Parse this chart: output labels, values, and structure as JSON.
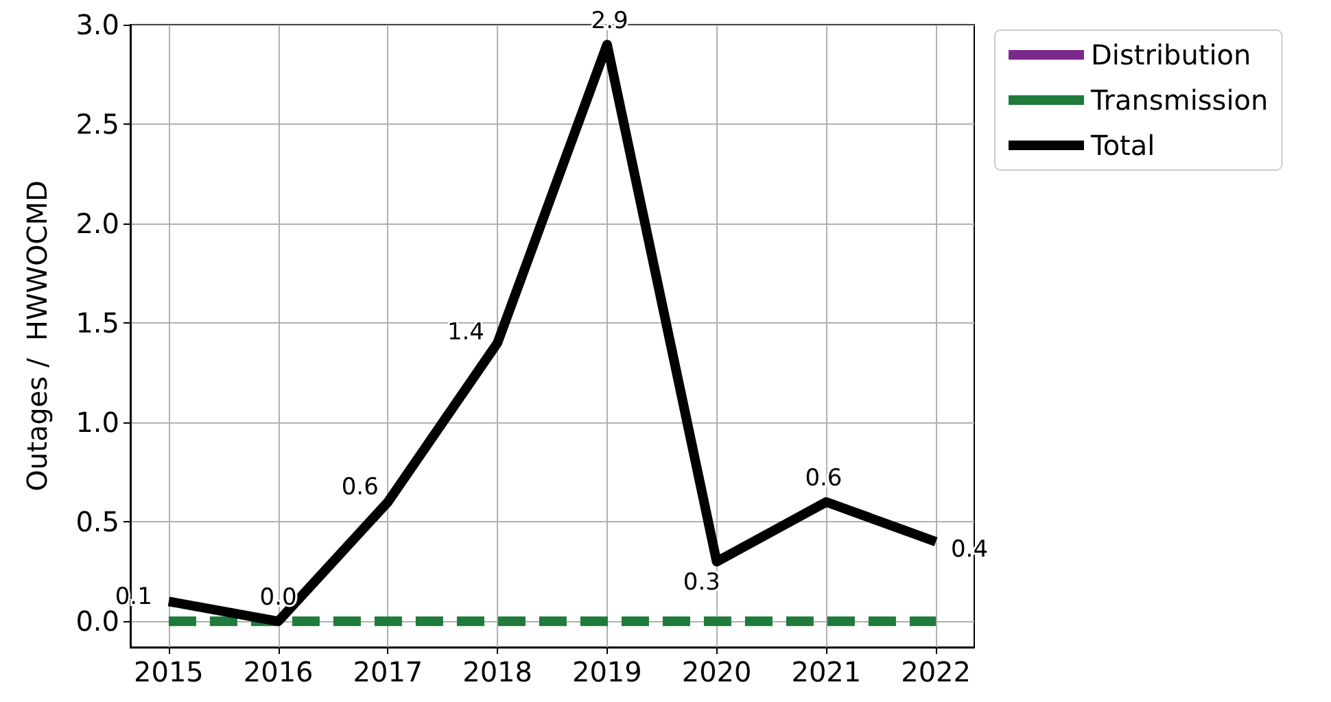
{
  "chart_data": {
    "type": "line",
    "ylabel": "Outages /  HWWOCMD",
    "x": [
      2015,
      2016,
      2017,
      2018,
      2019,
      2020,
      2021,
      2022
    ],
    "series": [
      {
        "name": "Distribution",
        "color": "#7b2a8c",
        "line_style": "solid",
        "values": [
          null,
          null,
          null,
          null,
          null,
          null,
          null,
          null
        ]
      },
      {
        "name": "Transmission",
        "color": "#1e7b3a",
        "line_style": "dashed",
        "values": [
          0,
          0,
          0,
          0,
          0,
          0,
          0,
          0
        ]
      },
      {
        "name": "Total",
        "color": "#000000",
        "line_style": "solid",
        "values": [
          0.1,
          0.0,
          0.6,
          1.4,
          2.9,
          0.3,
          0.6,
          0.4
        ],
        "value_labels": [
          "0.1",
          "0.0",
          "0.6",
          "1.4",
          "2.9",
          "0.3",
          "0.6",
          "0.4"
        ]
      }
    ],
    "xlim": [
      2014.65,
      2022.35
    ],
    "xticks": [
      2015,
      2016,
      2017,
      2018,
      2019,
      2020,
      2021,
      2022
    ],
    "ylim": [
      -0.13,
      3.0
    ],
    "yticks": [
      {
        "value": 0,
        "label": "0.0"
      },
      {
        "value": 0.5,
        "label": "0.5"
      },
      {
        "value": 1,
        "label": "1.0"
      },
      {
        "value": 1.5,
        "label": "1.5"
      },
      {
        "value": 2,
        "label": "2.0"
      },
      {
        "value": 2.5,
        "label": "2.5"
      },
      {
        "value": 3,
        "label": "3.0"
      }
    ],
    "grid": true,
    "legend": "top right",
    "marker": "none"
  }
}
